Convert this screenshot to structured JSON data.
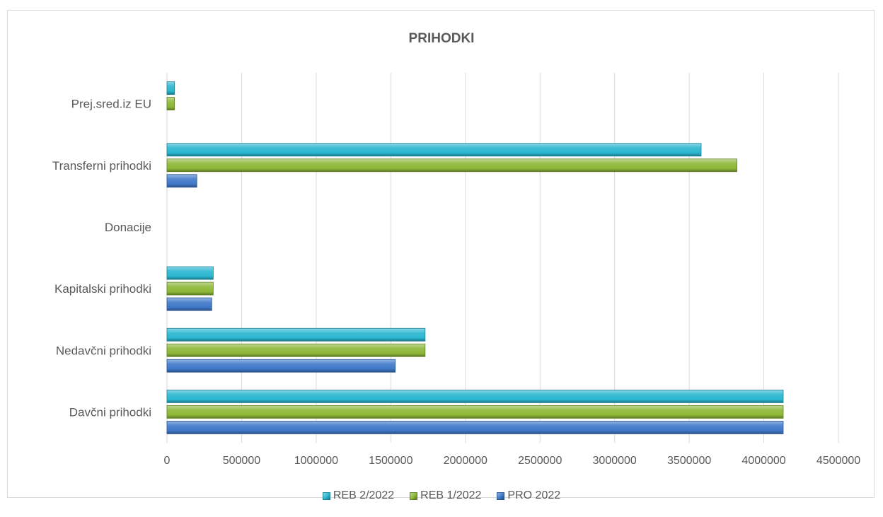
{
  "chart_data": {
    "type": "bar",
    "orientation": "horizontal",
    "title": "PRIHODKI",
    "categories": [
      "Davčni prihodki",
      "Nedavčni prihodki",
      "Kapitalski prihodki",
      "Donacije",
      "Transferni prihodki",
      "Prej.sred.iz EU"
    ],
    "series": [
      {
        "name": "REB 2/2022",
        "color": "#2ab6cf",
        "values": [
          4130000,
          1730000,
          310000,
          0,
          3580000,
          50000
        ]
      },
      {
        "name": "REB 1/2022",
        "color": "#8db737",
        "values": [
          4130000,
          1730000,
          310000,
          0,
          3820000,
          50000
        ]
      },
      {
        "name": "PRO 2022",
        "color": "#3f78c8",
        "values": [
          4130000,
          1530000,
          300000,
          0,
          200000,
          0
        ]
      }
    ],
    "xlim": [
      0,
      4500000
    ],
    "xticks": [
      "0",
      "500000",
      "1000000",
      "1500000",
      "2000000",
      "2500000",
      "3000000",
      "3500000",
      "4000000",
      "4500000"
    ],
    "grid": "vertical",
    "legend_position": "bottom"
  }
}
